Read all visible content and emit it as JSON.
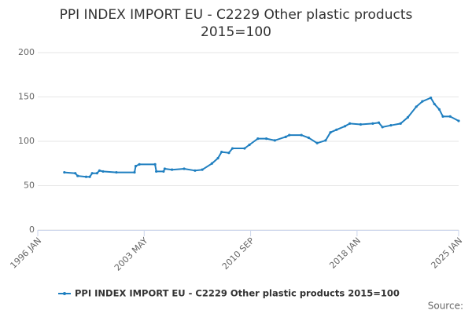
{
  "chart_data": {
    "type": "line",
    "title": "PPI INDEX IMPORT EU - C2229 Other plastic products 2015=100",
    "x": [
      "1997-11",
      "1998-08",
      "1998-10",
      "1999-05",
      "1999-08",
      "1999-10",
      "2000-02",
      "2000-04",
      "2000-07",
      "2001-06",
      "2002-09",
      "2002-10",
      "2003-01",
      "2004-02",
      "2004-03",
      "2004-09",
      "2004-10",
      "2005-04",
      "2006-02",
      "2006-11",
      "2007-05",
      "2008-01",
      "2008-06",
      "2008-09",
      "2009-03",
      "2009-06",
      "2010-04",
      "2010-08",
      "2011-03",
      "2011-10",
      "2012-05",
      "2013-02",
      "2013-05",
      "2014-03",
      "2014-09",
      "2015-04",
      "2015-11",
      "2016-03",
      "2016-08",
      "2017-03",
      "2017-07",
      "2018-04",
      "2019-02",
      "2019-07",
      "2019-10",
      "2020-05",
      "2021-01",
      "2021-07",
      "2022-02",
      "2022-07",
      "2023-02",
      "2023-05",
      "2023-09",
      "2023-12",
      "2024-06",
      "2025-01"
    ],
    "series": [
      {
        "name": "PPI INDEX IMPORT EU - C2229 Other plastic products 2015=100",
        "color": "#1f7fc0",
        "values": [
          65,
          64,
          61,
          60,
          60,
          64,
          64,
          67,
          66,
          65,
          65,
          72,
          74,
          74,
          66,
          66,
          69,
          68,
          69,
          67,
          68,
          75,
          81,
          88,
          87,
          92,
          92,
          96,
          103,
          103,
          101,
          105,
          107,
          107,
          104,
          98,
          101,
          110,
          113,
          117,
          120,
          119,
          120,
          121,
          116,
          118,
          120,
          127,
          139,
          145,
          149,
          142,
          136,
          128,
          128,
          123
        ]
      }
    ],
    "xlim": [
      "1996-01",
      "2025-01"
    ],
    "xticks": [
      {
        "value": "1996-01",
        "label": "1996 JAN"
      },
      {
        "value": "2003-05",
        "label": "2003 MAY"
      },
      {
        "value": "2010-09",
        "label": "2010 SEP"
      },
      {
        "value": "2018-01",
        "label": "2018 JAN"
      },
      {
        "value": "2025-01",
        "label": "2025 JAN"
      }
    ],
    "ylim": [
      0,
      200
    ],
    "yticks": [
      0,
      50,
      100,
      150,
      200
    ],
    "grid": true,
    "source": "Source:"
  }
}
